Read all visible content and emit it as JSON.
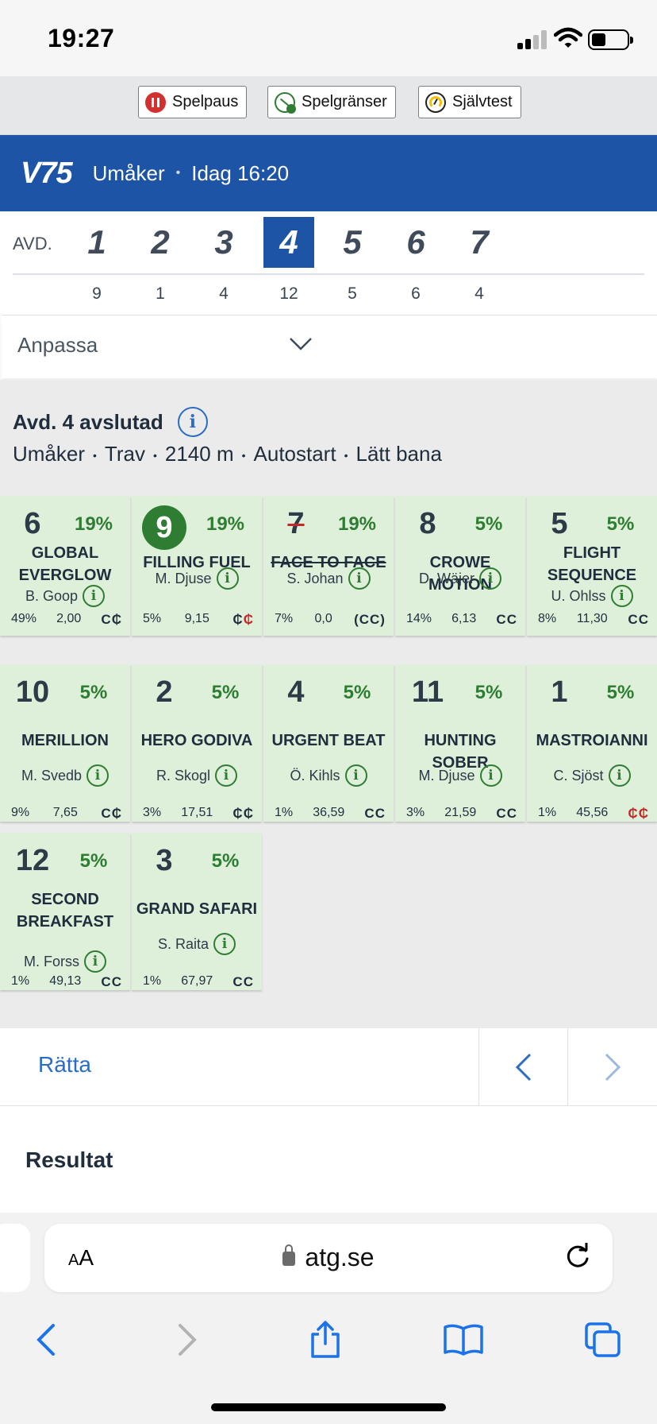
{
  "status_bar": {
    "time": "19:27",
    "battery_level": 0.35
  },
  "responsible_gaming": {
    "buttons": [
      {
        "label": "Spelpaus",
        "icon": "pause-icon"
      },
      {
        "label": "Spelgränser",
        "icon": "limits-icon"
      },
      {
        "label": "Självtest",
        "icon": "gauge-icon"
      }
    ]
  },
  "header": {
    "logo": "V75",
    "venue": "Umåker",
    "separator": "•",
    "time": "Idag 16:20",
    "color": "#1e54a6"
  },
  "legs": {
    "label": "AVD.",
    "items": [
      {
        "number": "1",
        "count": "9"
      },
      {
        "number": "2",
        "count": "1"
      },
      {
        "number": "3",
        "count": "4"
      },
      {
        "number": "4",
        "count": "12"
      },
      {
        "number": "5",
        "count": "5"
      },
      {
        "number": "6",
        "count": "6"
      },
      {
        "number": "7",
        "count": "4"
      }
    ],
    "active_index": 3
  },
  "customize": {
    "label": "Anpassa"
  },
  "race": {
    "title": "Avd. 4 avslutad",
    "details": [
      "Umåker",
      "Trav",
      "2140 m",
      "Autostart",
      "Lätt bana"
    ]
  },
  "horses": [
    {
      "number": "6",
      "pct": "19%",
      "name": "GLOBAL EVERGLOW",
      "driver": "B. Goop",
      "stat1": "49%",
      "odds": "2,00",
      "shoes": "C₵",
      "shoes_red": "",
      "winner": false,
      "scratched": false
    },
    {
      "number": "9",
      "pct": "19%",
      "name": "FILLING FUEL",
      "driver": "M. Djuse",
      "stat1": "5%",
      "odds": "9,15",
      "shoes": "₵",
      "shoes_red": "₵",
      "winner": true,
      "scratched": false
    },
    {
      "number": "7",
      "pct": "19%",
      "name": "FACE TO FACE",
      "driver": "S. Johan",
      "stat1": "7%",
      "odds": "0,0",
      "shoes": "(CC)",
      "shoes_red": "",
      "winner": false,
      "scratched": true
    },
    {
      "number": "8",
      "pct": "5%",
      "name": "CROWE MOTION",
      "driver": "D. Wäjer",
      "stat1": "14%",
      "odds": "6,13",
      "shoes": "CC",
      "shoes_red": "",
      "winner": false,
      "scratched": false
    },
    {
      "number": "5",
      "pct": "5%",
      "name": "FLIGHT SEQUENCE",
      "driver": "U. Ohlss",
      "stat1": "8%",
      "odds": "11,30",
      "shoes": "CC",
      "shoes_red": "",
      "winner": false,
      "scratched": false
    },
    {
      "number": "10",
      "pct": "5%",
      "name": "MERILLION",
      "driver": "M. Svedb",
      "stat1": "9%",
      "odds": "7,65",
      "shoes": "C₵",
      "shoes_red": "",
      "winner": false,
      "scratched": false
    },
    {
      "number": "2",
      "pct": "5%",
      "name": "HERO GODIVA",
      "driver": "R. Skogl",
      "stat1": "3%",
      "odds": "17,51",
      "shoes": "₵₵",
      "shoes_red": "",
      "winner": false,
      "scratched": false
    },
    {
      "number": "4",
      "pct": "5%",
      "name": "URGENT BEAT",
      "driver": "Ö. Kihls",
      "stat1": "1%",
      "odds": "36,59",
      "shoes": "CC",
      "shoes_red": "",
      "winner": false,
      "scratched": false
    },
    {
      "number": "11",
      "pct": "5%",
      "name": "HUNTING SOBER",
      "driver": "M. Djuse",
      "stat1": "3%",
      "odds": "21,59",
      "shoes": "CC",
      "shoes_red": "",
      "winner": false,
      "scratched": false
    },
    {
      "number": "1",
      "pct": "5%",
      "name": "MASTROIANNI",
      "driver": "C. Sjöst",
      "stat1": "1%",
      "odds": "45,56",
      "shoes": "",
      "shoes_red": "₵₵",
      "winner": false,
      "scratched": false
    },
    {
      "number": "12",
      "pct": "5%",
      "name": "SECOND BREAKFAST",
      "driver": "M. Forss",
      "stat1": "1%",
      "odds": "49,13",
      "shoes": "CC",
      "shoes_red": "",
      "winner": false,
      "scratched": false
    },
    {
      "number": "3",
      "pct": "5%",
      "name": "GRAND SAFARI",
      "driver": "S. Raita",
      "stat1": "1%",
      "odds": "67,97",
      "shoes": "CC",
      "shoes_red": "",
      "winner": false,
      "scratched": false
    }
  ],
  "correct": {
    "label": "Rätta"
  },
  "results": {
    "label": "Resultat"
  },
  "browser": {
    "text_size": "AA",
    "url": "atg.se"
  }
}
